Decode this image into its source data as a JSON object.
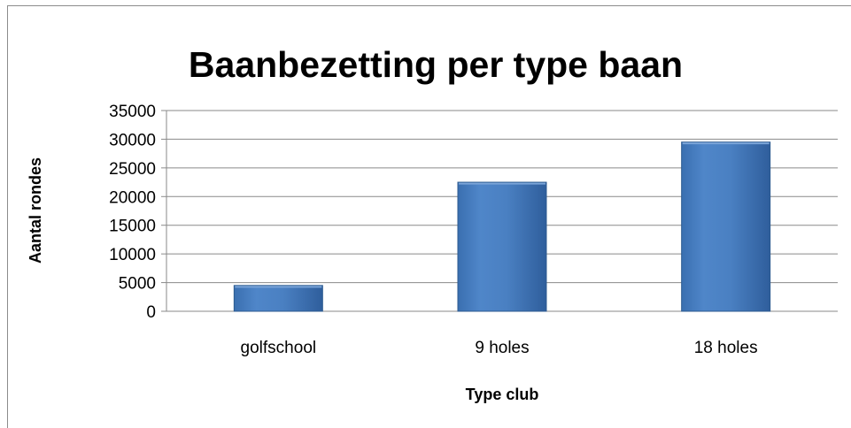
{
  "chart_data": {
    "type": "bar",
    "title": "Baanbezetting per type baan",
    "xlabel": "Type club",
    "ylabel": "Aantal rondes",
    "categories": [
      "golfschool",
      "9 holes",
      "18 holes"
    ],
    "values": [
      4500,
      22500,
      29500
    ],
    "ylim": [
      0,
      35000
    ],
    "yticks": [
      "0",
      "5000",
      "10000",
      "15000",
      "20000",
      "25000",
      "30000",
      "35000"
    ],
    "grid": true,
    "legend": "none",
    "bar_color": "#4f81bd",
    "bar_edge_color": "#2c5a8f"
  }
}
